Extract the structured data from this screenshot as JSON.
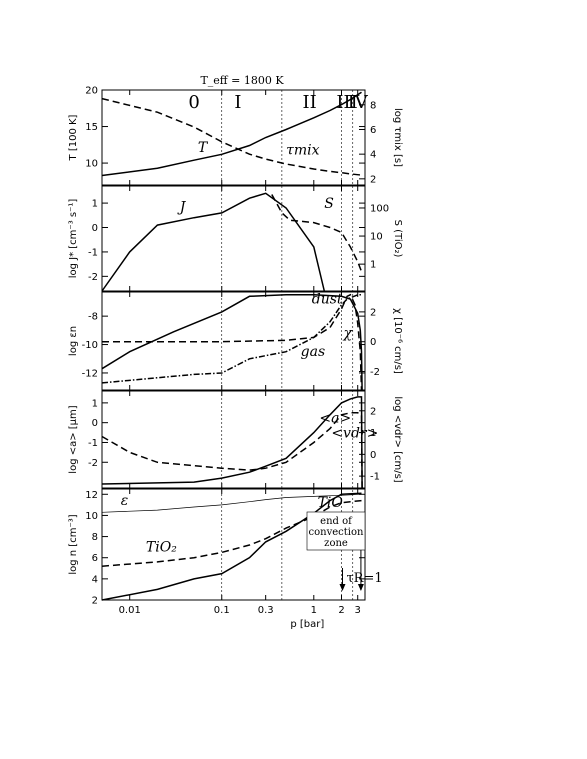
{
  "title": "T_eff = 1800 K",
  "xlabel": "p [bar]",
  "x_ticks": [
    "0.01",
    "0.1",
    "0.3",
    "1",
    "2",
    "3"
  ],
  "regions": [
    "0",
    "I",
    "II",
    "III",
    "IV"
  ],
  "annotations": {
    "tau_r": "τR=1",
    "convection": [
      "end of",
      "convection",
      "zone"
    ]
  },
  "chart_data": [
    {
      "type": "line",
      "ylabel": "T [100 K]",
      "y2label": "log τmix [s]",
      "ylim": [
        7,
        20
      ],
      "y2lim": [
        1.5,
        9.2
      ],
      "y_ticks": [
        10,
        15,
        20
      ],
      "y2_ticks": [
        2,
        4,
        6,
        8
      ],
      "series": [
        {
          "name": "T",
          "axis": "left",
          "dash": "solid",
          "points": [
            [
              0.005,
              8.3
            ],
            [
              0.02,
              9.3
            ],
            [
              0.05,
              10.4
            ],
            [
              0.1,
              11.2
            ],
            [
              0.2,
              12.4
            ],
            [
              0.3,
              13.5
            ],
            [
              0.5,
              14.6
            ],
            [
              1.0,
              16.2
            ],
            [
              1.5,
              17.2
            ],
            [
              2.0,
              18.0
            ],
            [
              2.5,
              18.7
            ],
            [
              3.3,
              19.7
            ]
          ]
        },
        {
          "name": "τmix",
          "axis": "right",
          "dash": "dashed",
          "points": [
            [
              0.005,
              8.5
            ],
            [
              0.02,
              7.4
            ],
            [
              0.05,
              6.2
            ],
            [
              0.1,
              5.0
            ],
            [
              0.2,
              4.0
            ],
            [
              0.3,
              3.6
            ],
            [
              0.5,
              3.2
            ],
            [
              1.0,
              2.8
            ],
            [
              1.5,
              2.6
            ],
            [
              2.0,
              2.5
            ],
            [
              2.5,
              2.4
            ],
            [
              3.3,
              2.3
            ]
          ]
        }
      ],
      "labels": [
        {
          "text": "T",
          "x": 0.055,
          "y": 11.5
        },
        {
          "text": "τmix",
          "x": 0.5,
          "y": 11.2
        }
      ]
    },
    {
      "type": "line",
      "ylabel": "log J* [cm⁻³ s⁻¹]",
      "y2label": "S (TiO₂)",
      "ylim": [
        -2.6,
        1.7
      ],
      "y_ticks": [
        -2,
        -1,
        0,
        1
      ],
      "y2_ticks": [
        "1",
        "10",
        "100"
      ],
      "y2_tick_y": [
        -1.5,
        -0.35,
        0.8
      ],
      "series": [
        {
          "name": "J*",
          "dash": "solid",
          "points": [
            [
              0.005,
              -2.6
            ],
            [
              0.01,
              -1.0
            ],
            [
              0.02,
              0.1
            ],
            [
              0.05,
              0.4
            ],
            [
              0.1,
              0.6
            ],
            [
              0.2,
              1.2
            ],
            [
              0.3,
              1.4
            ],
            [
              0.5,
              0.8
            ],
            [
              1.0,
              -0.8
            ],
            [
              1.3,
              -2.6
            ]
          ]
        },
        {
          "name": "S",
          "dash": "dashed",
          "points": [
            [
              0.35,
              1.35
            ],
            [
              0.45,
              0.6
            ],
            [
              0.55,
              0.3
            ],
            [
              1.0,
              0.2
            ],
            [
              1.5,
              0.0
            ],
            [
              2.0,
              -0.2
            ],
            [
              2.5,
              -0.8
            ],
            [
              3.0,
              -1.4
            ],
            [
              3.3,
              -1.8
            ]
          ]
        }
      ],
      "labels": [
        {
          "text": "J",
          "x": 0.035,
          "y": 0.65
        },
        {
          "text": "S",
          "x": 1.3,
          "y": 0.8
        }
      ]
    },
    {
      "type": "line",
      "ylabel": "log εn",
      "y2label": "χ [10⁻⁶ cm/s]",
      "ylim": [
        -13.2,
        -6.3
      ],
      "y_ticks": [
        -12,
        -10,
        -8
      ],
      "y2_ticks": [
        -2,
        0,
        2
      ],
      "y2_tick_y": [
        -11.9,
        -9.8,
        -7.7
      ],
      "series": [
        {
          "name": "dust",
          "dash": "solid",
          "points": [
            [
              0.005,
              -11.7
            ],
            [
              0.01,
              -10.5
            ],
            [
              0.03,
              -9.1
            ],
            [
              0.1,
              -7.7
            ],
            [
              0.2,
              -6.6
            ],
            [
              0.5,
              -6.5
            ],
            [
              1.0,
              -6.5
            ],
            [
              2.0,
              -6.6
            ],
            [
              2.5,
              -6.8
            ],
            [
              3.0,
              -7.8
            ],
            [
              3.2,
              -9.0
            ],
            [
              3.3,
              -10.5
            ],
            [
              3.35,
              -13.2
            ]
          ]
        },
        {
          "name": "χ",
          "dash": "dashed",
          "points": [
            [
              0.005,
              -9.8
            ],
            [
              0.1,
              -9.8
            ],
            [
              0.5,
              -9.7
            ],
            [
              1.0,
              -9.5
            ],
            [
              1.5,
              -8.8
            ],
            [
              2.0,
              -7.5
            ],
            [
              2.3,
              -6.6
            ],
            [
              2.5,
              -6.5
            ],
            [
              2.8,
              -7.2
            ],
            [
              3.0,
              -8.5
            ],
            [
              3.2,
              -10.5
            ],
            [
              3.3,
              -13.2
            ]
          ]
        },
        {
          "name": "gas",
          "dash": "dashdot",
          "points": [
            [
              0.005,
              -12.7
            ],
            [
              0.05,
              -12.1
            ],
            [
              0.1,
              -12.0
            ],
            [
              0.2,
              -11.0
            ],
            [
              0.5,
              -10.5
            ],
            [
              1.0,
              -9.5
            ],
            [
              1.5,
              -8.4
            ],
            [
              2.0,
              -7.2
            ],
            [
              2.3,
              -6.8
            ],
            [
              3.0,
              -6.5
            ],
            [
              3.4,
              -6.5
            ]
          ]
        }
      ],
      "labels": [
        {
          "text": "dust",
          "x": 0.95,
          "y": -7.1
        },
        {
          "text": "gas",
          "x": 0.72,
          "y": -10.8
        },
        {
          "text": "χ",
          "x": 2.1,
          "y": -9.5
        }
      ]
    },
    {
      "type": "line",
      "ylabel": "log <a> [μm]",
      "y2label": "log <vdr> [cm/s]",
      "ylim": [
        -3.3,
        1.6
      ],
      "y_ticks": [
        -2,
        -1,
        0,
        1
      ],
      "y2_ticks": [
        -1,
        0,
        1,
        2
      ],
      "y2_tick_y": [
        -2.7,
        -1.6,
        -0.5,
        0.6
      ],
      "series": [
        {
          "name": "<a>",
          "dash": "solid",
          "points": [
            [
              0.005,
              -3.1
            ],
            [
              0.05,
              -3.0
            ],
            [
              0.1,
              -2.8
            ],
            [
              0.2,
              -2.5
            ],
            [
              0.3,
              -2.2
            ],
            [
              0.5,
              -1.8
            ],
            [
              1.0,
              -0.5
            ],
            [
              1.5,
              0.4
            ],
            [
              2.0,
              1.0
            ],
            [
              2.5,
              1.2
            ],
            [
              3.0,
              1.3
            ],
            [
              3.3,
              1.3
            ],
            [
              3.35,
              -3.3
            ]
          ]
        },
        {
          "name": "<vdr>",
          "dash": "dashed",
          "points": [
            [
              0.005,
              -0.7
            ],
            [
              0.01,
              -1.5
            ],
            [
              0.02,
              -2.0
            ],
            [
              0.1,
              -2.3
            ],
            [
              0.2,
              -2.4
            ],
            [
              0.3,
              -2.3
            ],
            [
              0.5,
              -2.0
            ],
            [
              1.0,
              -1.0
            ],
            [
              1.5,
              -0.3
            ],
            [
              2.0,
              0.4
            ],
            [
              2.5,
              0.5
            ],
            [
              3.0,
              0.5
            ],
            [
              3.3,
              0.4
            ],
            [
              3.35,
              -3.3
            ]
          ]
        }
      ],
      "labels": [
        {
          "text": "<a>",
          "x": 1.15,
          "y": 0.0
        },
        {
          "text": "<vdr>",
          "x": 1.55,
          "y": -0.75
        }
      ]
    },
    {
      "type": "line",
      "ylabel": "log n [cm⁻³]",
      "ylim": [
        2,
        12.5
      ],
      "y_ticks": [
        2,
        4,
        6,
        8,
        10,
        12
      ],
      "series": [
        {
          "name": "ε n<H>",
          "dash": "thin",
          "points": [
            [
              0.005,
              10.3
            ],
            [
              0.02,
              10.5
            ],
            [
              0.05,
              10.8
            ],
            [
              0.1,
              11.0
            ],
            [
              0.2,
              11.3
            ],
            [
              0.3,
              11.5
            ],
            [
              0.5,
              11.7
            ],
            [
              1.0,
              11.8
            ],
            [
              2.0,
              11.9
            ],
            [
              3.3,
              12.0
            ]
          ]
        },
        {
          "name": "TiO",
          "dash": "solid",
          "points": [
            [
              0.005,
              1.8
            ],
            [
              0.02,
              3.0
            ],
            [
              0.05,
              4.0
            ],
            [
              0.1,
              4.5
            ],
            [
              0.2,
              6.0
            ],
            [
              0.3,
              7.5
            ],
            [
              0.5,
              8.5
            ],
            [
              1.0,
              10.2
            ],
            [
              1.5,
              11.4
            ],
            [
              2.0,
              12.0
            ],
            [
              3.3,
              12.1
            ]
          ]
        },
        {
          "name": "TiO₂",
          "dash": "dashed",
          "points": [
            [
              0.005,
              5.2
            ],
            [
              0.02,
              5.6
            ],
            [
              0.05,
              6.0
            ],
            [
              0.1,
              6.5
            ],
            [
              0.2,
              7.2
            ],
            [
              0.3,
              7.8
            ],
            [
              0.5,
              8.8
            ],
            [
              1.0,
              9.9
            ],
            [
              1.5,
              10.8
            ],
            [
              2.0,
              11.2
            ],
            [
              2.5,
              11.3
            ],
            [
              3.3,
              11.4
            ]
          ]
        }
      ],
      "labels": [
        {
          "text": "TiO",
          "x": 1.1,
          "y": 10.8
        },
        {
          "text": "TiO₂",
          "x": 0.015,
          "y": 6.6
        },
        {
          "text": "ε",
          "x": 0.008,
          "y": 11.0
        }
      ]
    }
  ]
}
